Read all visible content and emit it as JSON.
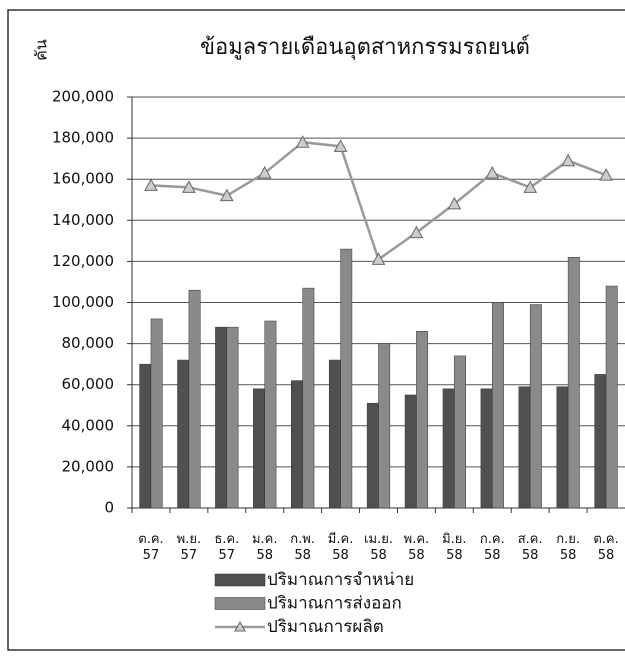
{
  "chart_data": {
    "type": "bar",
    "title": "ข้อมูลรายเดือนอุตสาหกรรมรถยนต์",
    "y_label": "คัน",
    "categories": [
      "ต.ค. 57",
      "พ.ย. 57",
      "ธ.ค. 57",
      "ม.ค. 58",
      "ก.พ. 58",
      "มี.ค. 58",
      "เม.ย. 58",
      "พ.ค. 58",
      "มิ.ย. 58",
      "ก.ค. 58",
      "ส.ค. 58",
      "ก.ย. 58",
      "ต.ค. 58"
    ],
    "series": [
      {
        "name": "ปริมาณการจำหน่าย",
        "type": "bar",
        "color": "#505050",
        "values": [
          70000,
          72000,
          88000,
          58000,
          62000,
          72000,
          51000,
          55000,
          58000,
          58000,
          59000,
          59000,
          65000
        ]
      },
      {
        "name": "ปริมาณการส่งออก",
        "type": "bar",
        "color": "#8a8a8a",
        "values": [
          92000,
          106000,
          88000,
          91000,
          107000,
          126000,
          80000,
          86000,
          74000,
          100000,
          99000,
          122000,
          108000
        ]
      },
      {
        "name": "ปริมาณการผลิต",
        "type": "line",
        "color": "#9a9a9a",
        "values": [
          157000,
          156000,
          152000,
          163000,
          178000,
          176000,
          121000,
          134000,
          148000,
          163000,
          156000,
          169000,
          162000
        ]
      }
    ],
    "ylim": [
      0,
      200000
    ],
    "yticks": [
      {
        "value": 0,
        "label": "0"
      },
      {
        "value": 20000,
        "label": "20,000"
      },
      {
        "value": 40000,
        "label": "40,000"
      },
      {
        "value": 60000,
        "label": "60,000"
      },
      {
        "value": 80000,
        "label": "80,000"
      },
      {
        "value": 100000,
        "label": "100,000"
      },
      {
        "value": 120000,
        "label": "120,000"
      },
      {
        "value": 140000,
        "label": "140,000"
      },
      {
        "value": 160000,
        "label": "160,000"
      },
      {
        "value": 180000,
        "label": "180,000"
      },
      {
        "value": 200000,
        "label": "200,000"
      }
    ],
    "grid": true
  }
}
